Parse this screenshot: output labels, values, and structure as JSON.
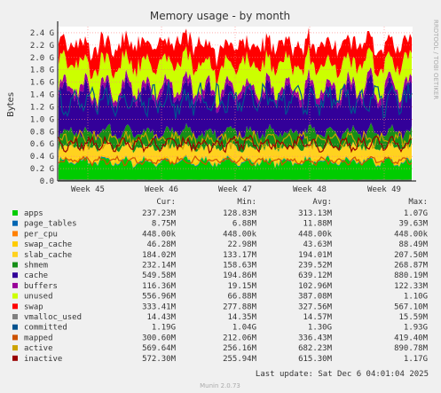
{
  "chart_data": {
    "type": "area",
    "title": "Memory usage - by month",
    "ylabel": "Bytes",
    "side_label": "RRDTOOL / TOBI OETIKER",
    "ylim": [
      0,
      2.5
    ],
    "yticks": [
      "0.0",
      "0.2 G",
      "0.4 G",
      "0.6 G",
      "0.8 G",
      "1.0 G",
      "1.2 G",
      "1.4 G",
      "1.6 G",
      "1.8 G",
      "2.0 G",
      "2.2 G",
      "2.4 G"
    ],
    "xticks": [
      "Week 45",
      "Week 46",
      "Week 47",
      "Week 48",
      "Week 49"
    ],
    "grid": true,
    "columns": [
      "Cur:",
      "Min:",
      "Avg:",
      "Max:"
    ],
    "series": [
      {
        "name": "apps",
        "color": "#00cc00",
        "kind": "area",
        "cur": "237.23M",
        "min": "128.83M",
        "avg": "313.13M",
        "max": "1.07G"
      },
      {
        "name": "page_tables",
        "color": "#0066b3",
        "kind": "area",
        "cur": "8.75M",
        "min": "6.88M",
        "avg": "11.88M",
        "max": "39.63M"
      },
      {
        "name": "per_cpu",
        "color": "#ff8000",
        "kind": "area",
        "cur": "448.00k",
        "min": "448.00k",
        "avg": "448.00k",
        "max": "448.00k"
      },
      {
        "name": "swap_cache",
        "color": "#ffcc00",
        "kind": "area",
        "cur": "46.28M",
        "min": "22.98M",
        "avg": "43.63M",
        "max": "88.49M"
      },
      {
        "name": "slab_cache",
        "color": "#ffd21f",
        "kind": "area",
        "cur": "184.02M",
        "min": "133.17M",
        "avg": "194.01M",
        "max": "207.50M"
      },
      {
        "name": "shmem",
        "color": "#168f18",
        "kind": "area",
        "cur": "232.14M",
        "min": "158.63M",
        "avg": "239.52M",
        "max": "268.87M"
      },
      {
        "name": "cache",
        "color": "#330099",
        "kind": "area",
        "cur": "549.58M",
        "min": "194.86M",
        "avg": "639.12M",
        "max": "880.19M"
      },
      {
        "name": "buffers",
        "color": "#990099",
        "kind": "area",
        "cur": "116.36M",
        "min": "19.15M",
        "avg": "102.96M",
        "max": "122.33M"
      },
      {
        "name": "unused",
        "color": "#ccff00",
        "kind": "area",
        "cur": "556.96M",
        "min": "66.88M",
        "avg": "387.08M",
        "max": "1.10G"
      },
      {
        "name": "swap",
        "color": "#ff0000",
        "kind": "area",
        "cur": "333.41M",
        "min": "277.88M",
        "avg": "327.56M",
        "max": "567.10M"
      },
      {
        "name": "vmalloc_used",
        "color": "#808080",
        "kind": "line",
        "cur": "14.43M",
        "min": "14.35M",
        "avg": "14.57M",
        "max": "15.59M"
      },
      {
        "name": "committed",
        "color": "#00528f",
        "kind": "line",
        "cur": "1.19G",
        "min": "1.04G",
        "avg": "1.30G",
        "max": "1.93G"
      },
      {
        "name": "mapped",
        "color": "#cc5200",
        "kind": "line",
        "cur": "300.60M",
        "min": "212.06M",
        "avg": "336.43M",
        "max": "419.40M"
      },
      {
        "name": "active",
        "color": "#cca300",
        "kind": "line",
        "cur": "569.64M",
        "min": "256.16M",
        "avg": "682.23M",
        "max": "890.78M"
      },
      {
        "name": "inactive",
        "color": "#990000",
        "kind": "line",
        "cur": "572.30M",
        "min": "255.94M",
        "avg": "615.30M",
        "max": "1.17G"
      }
    ],
    "last_update": "Last update: Sat Dec  6 04:01:04 2025",
    "footer": "Munin 2.0.73"
  }
}
